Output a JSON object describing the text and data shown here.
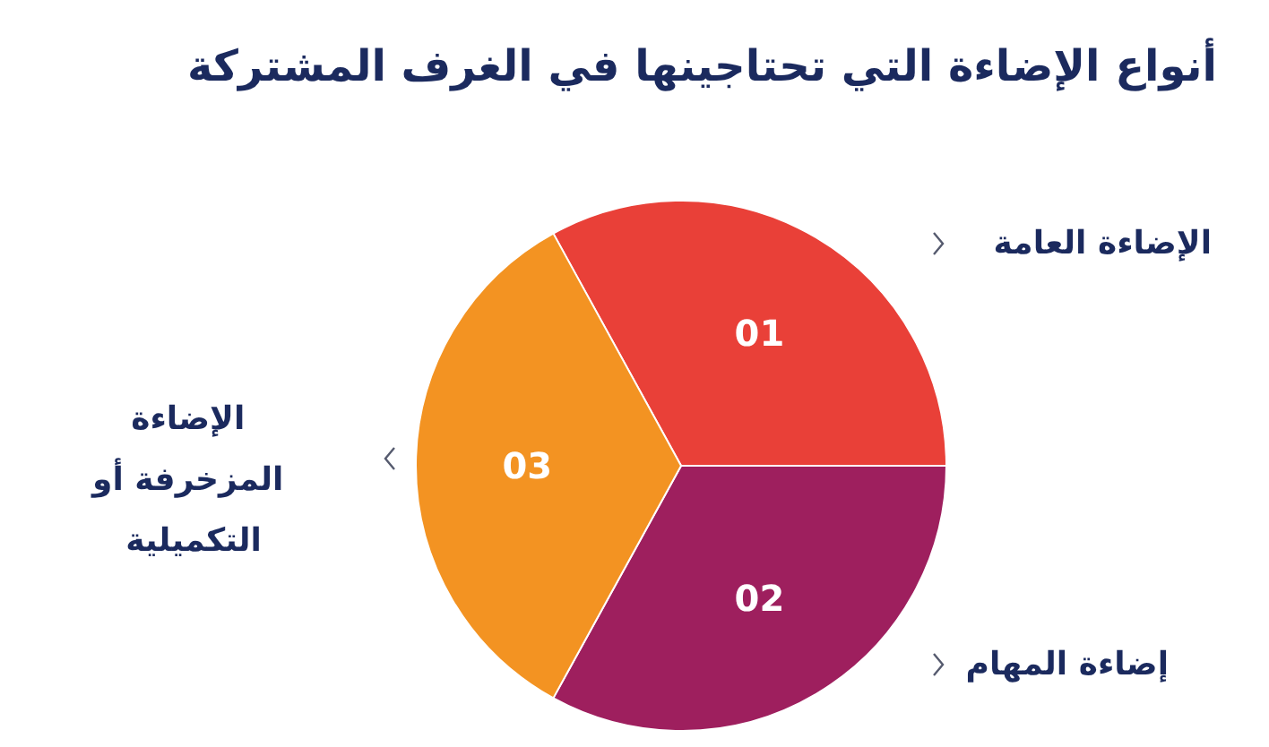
{
  "chart_data": {
    "type": "pie",
    "title": "أنواع الإضاءة التي تحتاجينها في الغرف المشتركة",
    "categories": [
      "الإضاءة العامة",
      "إضاءة المهام",
      "الإضاءة المزخرفة أو التكميلية"
    ],
    "values": [
      33,
      33,
      34
    ],
    "annotations": [
      "01",
      "02",
      "03"
    ],
    "colors": [
      "#e94038",
      "#9e1f5e",
      "#f39322"
    ],
    "legend": false
  }
}
